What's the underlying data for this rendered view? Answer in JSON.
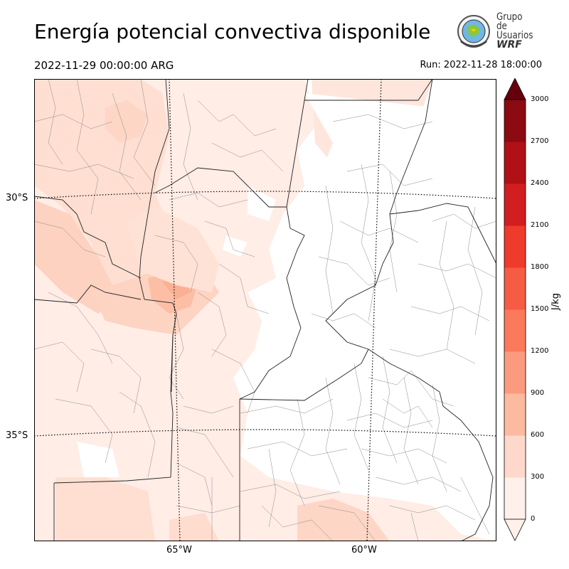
{
  "header": {
    "title": "Energía potencial convectiva disponible",
    "valid_time": "2022-11-29 00:00:00 ARG",
    "run_time": "Run: 2022-11-28 18:00:00"
  },
  "logo": {
    "line1": "Grupo de",
    "line2": "Usuarios",
    "line3": "WRF"
  },
  "map": {
    "field": "CAPE",
    "latitude_labels": [
      "30°S",
      "35°S"
    ],
    "longitude_labels": [
      "65°W",
      "60°W"
    ],
    "graticule_style": "dotted",
    "boundaries": [
      "provincias",
      "departamentos/partidos"
    ],
    "shading": [
      {
        "area": "noroeste (Catamarca, La Rioja)",
        "range_jkg": "0-600"
      },
      {
        "area": "centro (Córdoba, San Luis)",
        "range_jkg": "300-900",
        "max_jkg": 900
      },
      {
        "area": "Santa Fe / Entre Ríos / Buenos Aires norte",
        "range_jkg": "0 (sin sombreado)"
      },
      {
        "area": "sur de Buenos Aires y La Pampa",
        "range_jkg": "0-600"
      }
    ]
  },
  "colorbar": {
    "unit": "J/kg",
    "ticks": [
      "0",
      "300",
      "600",
      "900",
      "1200",
      "1500",
      "1800",
      "2100",
      "2400",
      "2700",
      "3000"
    ],
    "colors": [
      "#fff0eb",
      "#fed8ca",
      "#fcbba1",
      "#fc9a80",
      "#fb7a5c",
      "#f65c44",
      "#ef3b2c",
      "#d21e20",
      "#b01016",
      "#8c0a12",
      "#67000d"
    ],
    "extend": "both"
  }
}
